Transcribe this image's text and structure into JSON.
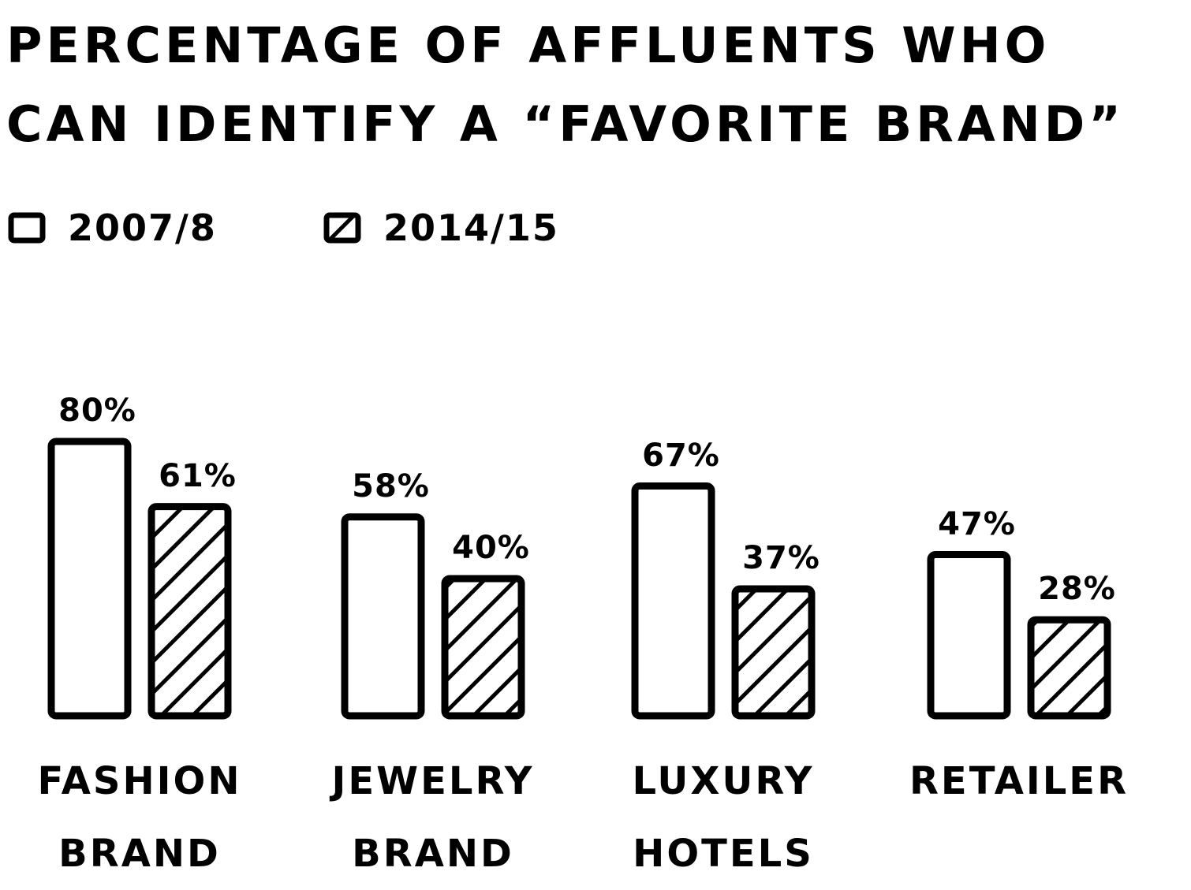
{
  "chart_data": {
    "type": "bar",
    "title": "PERCENTAGE OF AFFLUENTS WHO\nCAN IDENTIFY A “FAVORITE BRAND”",
    "categories": [
      "FASHION\nBRAND",
      "JEWELRY\nBRAND",
      "LUXURY\nHOTELS",
      "RETAILER"
    ],
    "series": [
      {
        "name": "2007/8",
        "color": "#000000",
        "pattern": "none",
        "values": [
          80,
          58,
          67,
          47
        ],
        "value_labels": [
          "80%",
          "58%",
          "67%",
          "47%"
        ]
      },
      {
        "name": "2014/15",
        "color": "#000000",
        "pattern": "diagonal",
        "values": [
          61,
          40,
          37,
          28
        ],
        "value_labels": [
          "61%",
          "40%",
          "37%",
          "28%"
        ]
      }
    ]
  }
}
